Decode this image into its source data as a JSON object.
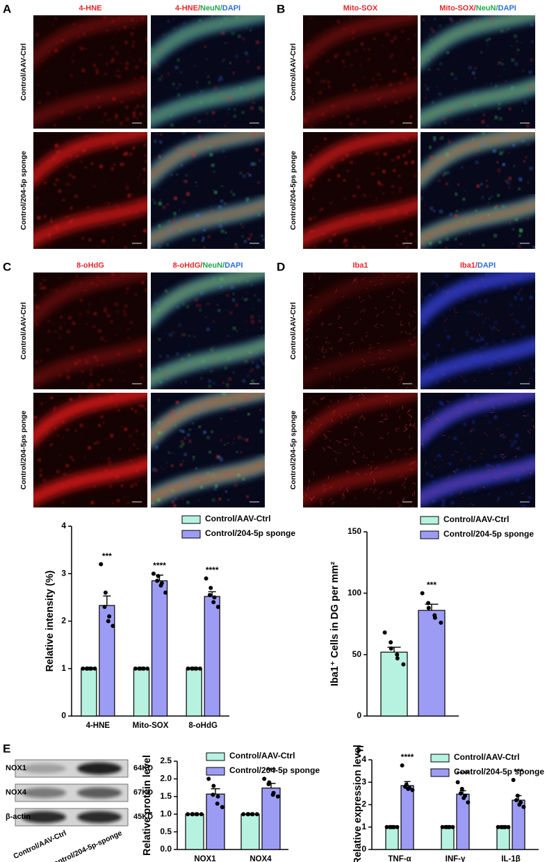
{
  "panels": [
    {
      "letter": "A",
      "columns": [
        [
          {
            "text": "4-HNE",
            "color": "#e8262a"
          }
        ],
        [
          {
            "text": "4-HNE/",
            "color": "#e8262a"
          },
          {
            "text": "NeuN/",
            "color": "#1fa84a"
          },
          {
            "text": "DAPI",
            "color": "#2a6fd6"
          }
        ]
      ],
      "rows": [
        "Control/AAV-Ctrl",
        "Control/204-5p sponge"
      ]
    },
    {
      "letter": "B",
      "columns": [
        [
          {
            "text": "Mito-SOX",
            "color": "#e8262a"
          }
        ],
        [
          {
            "text": "Mito-SOX/",
            "color": "#e8262a"
          },
          {
            "text": "NeuN/",
            "color": "#1fa84a"
          },
          {
            "text": "DAPI",
            "color": "#2a6fd6"
          }
        ]
      ],
      "rows": [
        "Control/AAV-Ctrl",
        "Control/204-5ps ponge"
      ]
    },
    {
      "letter": "C",
      "columns": [
        [
          {
            "text": "8-oHdG",
            "color": "#e8262a"
          }
        ],
        [
          {
            "text": "8-oHdG/",
            "color": "#e8262a"
          },
          {
            "text": "NeuN/",
            "color": "#1fa84a"
          },
          {
            "text": "DAPI",
            "color": "#2a6fd6"
          }
        ]
      ],
      "rows": [
        "Control/AAV-Ctrl",
        "Control/204-5ps ponge"
      ]
    },
    {
      "letter": "D",
      "columns": [
        [
          {
            "text": "Iba1",
            "color": "#e8262a"
          }
        ],
        [
          {
            "text": "Iba1/",
            "color": "#e8262a"
          },
          {
            "text": "DAPI",
            "color": "#2a6fd6"
          }
        ]
      ],
      "rows": [
        "Control/AAV-Ctrl",
        "Control/204-5p sponge"
      ]
    }
  ],
  "blot": {
    "letter": "E",
    "proteins": [
      "NOX1",
      "NOX4",
      "β-actin"
    ],
    "sizes": [
      "64KD",
      "67KD",
      "45KD"
    ],
    "lanes": [
      "Control/AAV-Ctrl",
      "Control/204-5p-sponge"
    ]
  },
  "chart_data": [
    {
      "type": "bar",
      "y_label": "Relative intensity (%)",
      "categories": [
        "4-HNE",
        "Mito-SOX",
        "8-oHdG"
      ],
      "ylim": [
        0,
        4
      ],
      "yticks": [
        0,
        1,
        2,
        3,
        4
      ],
      "series": [
        {
          "name": "Control/AAV-Ctrl",
          "color": "#b6f2df",
          "values": [
            1,
            1,
            1
          ],
          "errors": [
            0,
            0,
            0
          ],
          "points": [
            [
              1,
              1,
              1,
              1,
              1,
              1
            ],
            [
              1,
              1,
              1,
              1,
              1,
              1
            ],
            [
              1,
              1,
              1,
              1,
              1,
              1
            ]
          ]
        },
        {
          "name": "Control/204-5p sponge",
          "color": "#9d9cf5",
          "values": [
            2.33,
            2.85,
            2.52
          ],
          "errors": [
            0.2,
            0.12,
            0.1
          ],
          "significance": [
            "***",
            "****",
            "****"
          ],
          "points": [
            [
              3.2,
              2.6,
              2.3,
              2.1,
              2.0,
              1.9
            ],
            [
              3.0,
              2.95,
              2.85,
              2.8,
              2.75,
              2.6
            ],
            [
              2.9,
              2.7,
              2.55,
              2.5,
              2.4,
              2.3
            ]
          ]
        }
      ]
    },
    {
      "type": "bar",
      "y_label": "Iba1⁺ Cells in DG per mm²",
      "ylim": [
        0,
        150
      ],
      "yticks": [
        0,
        50,
        100,
        150
      ],
      "series": [
        {
          "name": "Control/AAV-Ctrl",
          "color": "#b6f2df",
          "values": [
            52
          ],
          "errors": [
            4
          ],
          "points": [
            [
              68,
              60,
              55,
              50,
              47,
              42
            ]
          ]
        },
        {
          "name": "Control/204-5p sponge",
          "color": "#9d9cf5",
          "values": [
            86
          ],
          "errors": [
            5
          ],
          "significance": [
            "***"
          ],
          "points": [
            [
              100,
              92,
              88,
              82,
              80,
              76
            ]
          ]
        }
      ]
    },
    {
      "type": "bar",
      "panel_label": "",
      "y_label": "Relative  protein level",
      "categories": [
        "NOX1",
        "NOX4"
      ],
      "ylim": [
        0,
        2.5
      ],
      "yticks": [
        {
          "value": 0,
          "label": "0.0"
        },
        0.5,
        {
          "value": 1,
          "label": "1.0"
        },
        1.5,
        {
          "value": 2,
          "label": "2.0"
        },
        2.5
      ],
      "series": [
        {
          "name": "Control/AAV-Ctrl",
          "color": "#b6f2df",
          "values": [
            1,
            1
          ],
          "errors": [
            0,
            0
          ],
          "points": [
            [
              1,
              1,
              1,
              1,
              1,
              1
            ],
            [
              1,
              1,
              1,
              1,
              1,
              1
            ]
          ]
        },
        {
          "name": "Control/204-5p sponge",
          "color": "#9d9cf5",
          "values": [
            1.57,
            1.74
          ],
          "errors": [
            0.15,
            0.13
          ],
          "significance": [
            "**",
            "***"
          ],
          "points": [
            [
              2.0,
              1.8,
              1.55,
              1.5,
              1.3,
              1.2
            ],
            [
              2.0,
              1.9,
              1.85,
              1.6,
              1.55,
              1.5
            ]
          ]
        }
      ]
    },
    {
      "type": "bar",
      "panel_label": "F",
      "y_label": "Relative expression level",
      "categories": [
        "TNF-α",
        "INF-γ",
        "IL-1β"
      ],
      "ylim": [
        0,
        4
      ],
      "yticks": [
        0,
        1,
        2,
        3,
        4
      ],
      "series": [
        {
          "name": "Control/AAV-Ctrl",
          "color": "#b6f2df",
          "values": [
            1,
            1,
            1
          ],
          "errors": [
            0,
            0,
            0
          ],
          "points": [
            [
              1,
              1,
              1,
              1,
              1,
              1
            ],
            [
              1,
              1,
              1,
              1,
              1,
              1
            ],
            [
              1,
              1,
              1,
              1,
              1,
              1
            ]
          ]
        },
        {
          "name": "Control/204-5p sponge",
          "color": "#9d9cf5",
          "values": [
            2.85,
            2.47,
            2.2
          ],
          "errors": [
            0.18,
            0.15,
            0.2
          ],
          "significance": [
            "****",
            "****",
            "***"
          ],
          "points": [
            [
              3.75,
              2.9,
              2.8,
              2.75,
              2.7,
              2.65
            ],
            [
              3.0,
              2.7,
              2.5,
              2.4,
              2.3,
              2.1
            ],
            [
              3.1,
              2.4,
              2.2,
              2.1,
              2.0,
              1.9
            ]
          ]
        }
      ]
    }
  ]
}
